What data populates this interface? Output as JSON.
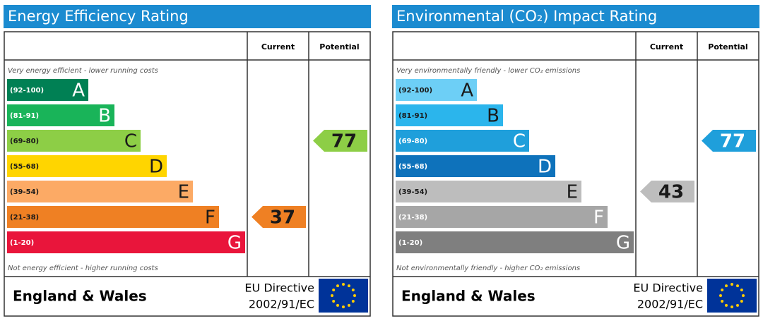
{
  "panels": [
    {
      "title": "Energy Efficiency Rating",
      "columns": [
        "Current",
        "Potential"
      ],
      "top_note": "Very energy efficient - lower running costs",
      "bottom_note": "Not energy efficient - higher running costs",
      "bands": [
        {
          "range": "(92-100)",
          "letter": "A",
          "color": "#008054",
          "text_color": "#ffffff"
        },
        {
          "range": "(81-91)",
          "letter": "B",
          "color": "#19b459",
          "text_color": "#ffffff"
        },
        {
          "range": "(69-80)",
          "letter": "C",
          "color": "#8dce46",
          "text_color": "#1a1a1a"
        },
        {
          "range": "(55-68)",
          "letter": "D",
          "color": "#ffd500",
          "text_color": "#1a1a1a"
        },
        {
          "range": "(39-54)",
          "letter": "E",
          "color": "#fcaa65",
          "text_color": "#1a1a1a"
        },
        {
          "range": "(21-38)",
          "letter": "F",
          "color": "#ef8023",
          "text_color": "#1a1a1a"
        },
        {
          "range": "(1-20)",
          "letter": "G",
          "color": "#e9153b",
          "text_color": "#ffffff"
        }
      ],
      "current": 37,
      "potential": 77,
      "region": "England & Wales",
      "directive": [
        "EU Directive",
        "2002/91/EC"
      ]
    },
    {
      "title": "Environmental (CO₂) Impact Rating",
      "columns": [
        "Current",
        "Potential"
      ],
      "top_note": "Very environmentally friendly - lower CO₂ emissions",
      "bottom_note": "Not environmentally friendly - higher CO₂ emissions",
      "bands": [
        {
          "range": "(92-100)",
          "letter": "A",
          "color": "#6dcff6",
          "text_color": "#1a1a1a"
        },
        {
          "range": "(81-91)",
          "letter": "B",
          "color": "#2bb5ec",
          "text_color": "#1a1a1a"
        },
        {
          "range": "(69-80)",
          "letter": "C",
          "color": "#1f9fdb",
          "text_color": "#ffffff"
        },
        {
          "range": "(55-68)",
          "letter": "D",
          "color": "#0e72bb",
          "text_color": "#ffffff"
        },
        {
          "range": "(39-54)",
          "letter": "E",
          "color": "#bdbdbd",
          "text_color": "#1a1a1a"
        },
        {
          "range": "(21-38)",
          "letter": "F",
          "color": "#a6a6a6",
          "text_color": "#ffffff"
        },
        {
          "range": "(1-20)",
          "letter": "G",
          "color": "#7f7f7f",
          "text_color": "#ffffff"
        }
      ],
      "current": 43,
      "potential": 77,
      "region": "England & Wales",
      "directive": [
        "EU Directive",
        "2002/91/EC"
      ]
    }
  ]
}
